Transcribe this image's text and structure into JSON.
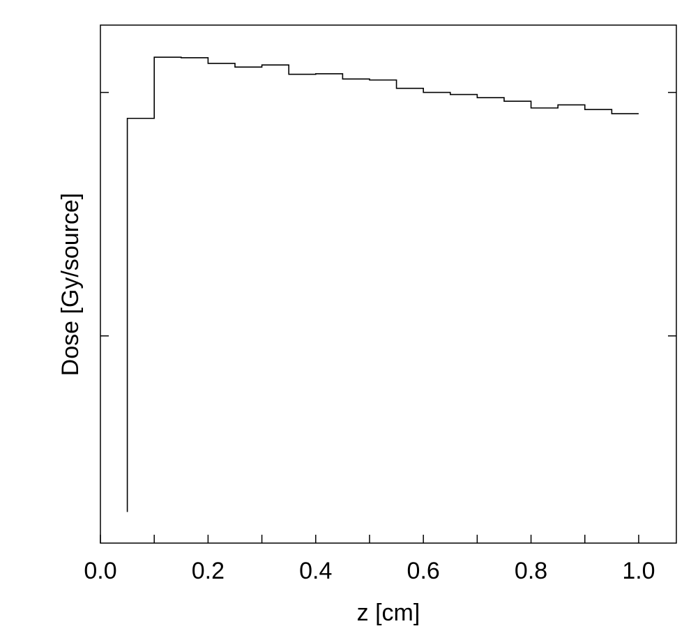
{
  "chart_data": {
    "type": "line",
    "step": true,
    "xlabel": "z [cm]",
    "ylabel": "Dose [Gy/source]",
    "xlim": [
      0.0,
      1.07
    ],
    "ylim": [
      0.0,
      1.0
    ],
    "xticks": [
      0.0,
      0.2,
      0.4,
      0.6,
      0.8,
      1.0
    ],
    "xtick_labels": [
      "0.0",
      "0.2",
      "0.4",
      "0.6",
      "0.8",
      "1.0"
    ],
    "yticks_minor": [
      0.0625,
      0.1,
      0.15,
      0.2,
      0.25,
      0.3,
      0.35,
      0.4,
      0.45,
      0.5,
      0.55,
      0.6,
      0.65,
      0.7,
      0.75,
      0.8,
      0.85,
      0.9,
      0.95,
      1.0
    ],
    "yticks": [
      0.4,
      0.87
    ],
    "ytick_labels_visible": false,
    "grid": false,
    "baseline_y": 0.06,
    "series": [
      {
        "bin_edges": [
          0.05,
          0.1,
          0.15,
          0.2,
          0.25,
          0.3,
          0.35,
          0.4,
          0.45,
          0.5,
          0.55,
          0.6,
          0.65,
          0.7,
          0.75,
          0.8,
          0.85,
          0.9,
          0.95,
          1.0
        ],
        "values": [
          0.82,
          0.938,
          0.937,
          0.926,
          0.919,
          0.923,
          0.905,
          0.906,
          0.896,
          0.894,
          0.878,
          0.87,
          0.866,
          0.86,
          0.853,
          0.84,
          0.846,
          0.837,
          0.829
        ]
      }
    ]
  }
}
